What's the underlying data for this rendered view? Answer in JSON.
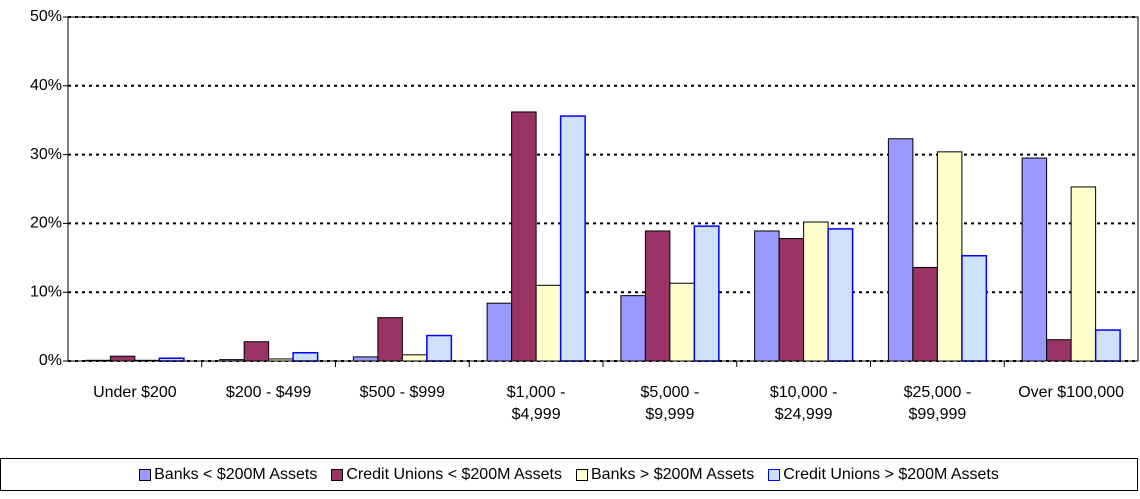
{
  "chart_data": {
    "type": "bar",
    "categories": [
      "Under $200",
      "$200 - $499",
      "$500 - $999",
      "$1,000 - $4,999",
      "$5,000 - $9,999",
      "$10,000 - $24,999",
      "$25,000 - $99,999",
      "Over $100,000"
    ],
    "series": [
      {
        "name": "Banks < $200M Assets",
        "color": "#9999ff",
        "values": [
          0.1,
          0.2,
          0.6,
          8.4,
          9.5,
          18.9,
          32.3,
          29.5
        ]
      },
      {
        "name": "Credit Unions < $200M Assets",
        "color": "#993366",
        "values": [
          0.7,
          2.8,
          6.3,
          36.2,
          18.9,
          17.8,
          13.6,
          3.1
        ]
      },
      {
        "name": "Banks > $200M Assets",
        "color": "#ffffcc",
        "values": [
          0.1,
          0.3,
          0.9,
          11.0,
          11.3,
          20.2,
          30.4,
          25.3
        ]
      },
      {
        "name": "Credit Unions > $200M Assets",
        "color": "#cfe0fb",
        "values": [
          0.4,
          1.2,
          3.7,
          35.6,
          19.6,
          19.2,
          15.3,
          4.5
        ]
      }
    ],
    "ylim": [
      0,
      50
    ],
    "yticks": [
      {
        "value": 0,
        "label": "0%"
      },
      {
        "value": 10,
        "label": "10%"
      },
      {
        "value": 20,
        "label": "20%"
      },
      {
        "value": 30,
        "label": "30%"
      },
      {
        "value": 40,
        "label": "40%"
      },
      {
        "value": 50,
        "label": "50%"
      }
    ],
    "grid": true,
    "legend": "bottom"
  }
}
